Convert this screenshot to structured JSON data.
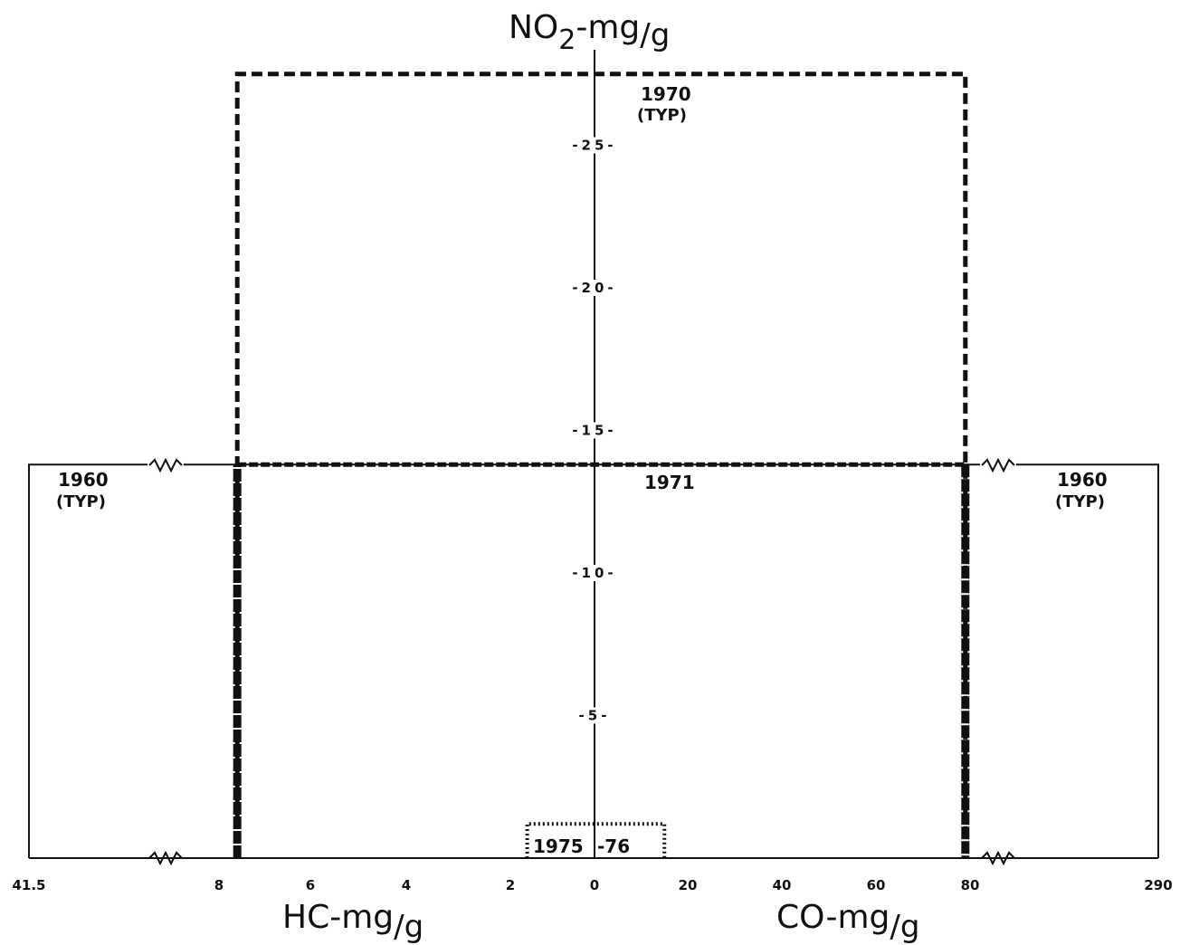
{
  "chart_data": {
    "type": "line",
    "title": "",
    "y_axis": {
      "label_main": "NO",
      "label_sub": "2",
      "label_unit": "-mg",
      "label_per": "/g",
      "ticks": [
        5,
        10,
        15,
        20,
        25
      ],
      "tick_labels": [
        "-5-",
        "-10-",
        "-15-",
        "-20-",
        "-25-"
      ],
      "range": [
        0,
        29.5
      ]
    },
    "hc_axis": {
      "label_main": "HC-mg",
      "label_per": "/g",
      "tick_labels": [
        "41.5",
        "8",
        "6",
        "4",
        "2",
        "0"
      ],
      "ticks": [
        41.5,
        8,
        6,
        4,
        2,
        0
      ]
    },
    "co_axis": {
      "label_main": "CO-mg",
      "label_per": "/g",
      "tick_labels": [
        "20",
        "40",
        "60",
        "80",
        "290"
      ],
      "ticks": [
        20,
        40,
        60,
        80,
        290
      ]
    },
    "series": [
      {
        "name": "1960 (TYP)",
        "hc": 41.5,
        "co": 290,
        "no2": 13.8,
        "style": "solid"
      },
      {
        "name": "1970 (TYP)",
        "hc": 7.6,
        "co": 79,
        "no2": 27.5,
        "style": "dashed"
      },
      {
        "name": "1971",
        "hc": 7.6,
        "co": 79,
        "no2": 13.8,
        "style": "heavy-dashed"
      },
      {
        "name": "1975-76",
        "hc": 1.6,
        "co": 15,
        "no2": 1.2,
        "style": "dotted"
      }
    ],
    "annotations": {
      "y1960_left": "1960",
      "typ_left": "(TYP)",
      "y1960_right": "1960",
      "typ_right": "(TYP)",
      "y1970": "1970",
      "typ_1970": "(TYP)",
      "y1971": "1971",
      "y1975_a": "1975",
      "y1975_b": "-76"
    }
  }
}
